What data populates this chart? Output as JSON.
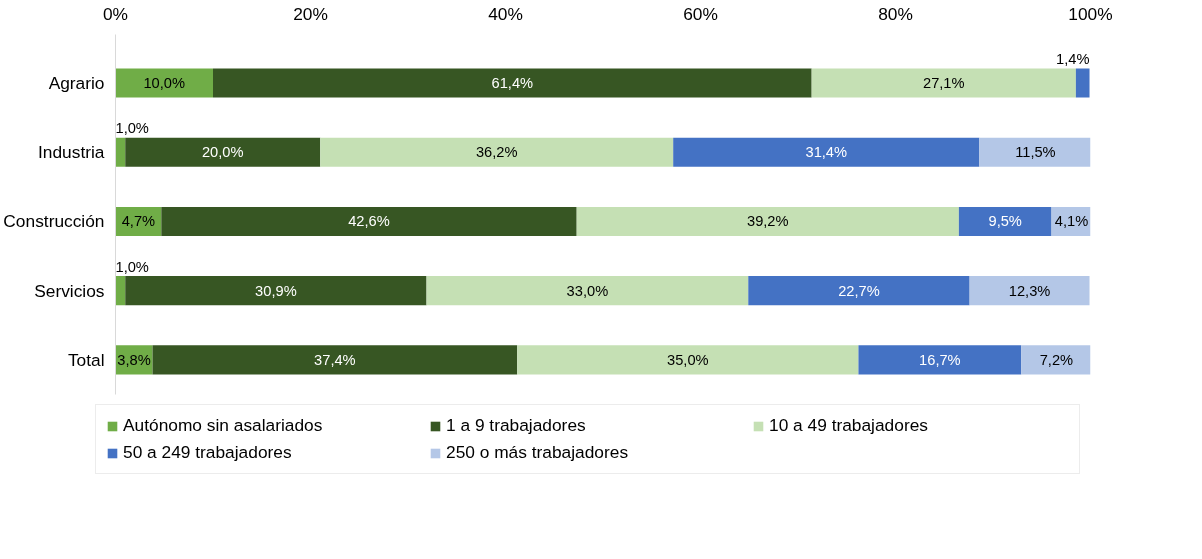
{
  "chart_data": {
    "type": "bar",
    "orientation": "horizontal",
    "stacked": true,
    "categories": [
      "Agrario",
      "Industria",
      "Construcción",
      "Servicios",
      "Total"
    ],
    "series": [
      {
        "name": "Autónomo sin asalariados",
        "color": "#70ad47",
        "values": [
          10.0,
          1.0,
          4.7,
          1.0,
          3.8
        ],
        "value_labels": [
          "10,0%",
          "1,0%",
          "4,7%",
          "1,0%",
          "3,8%"
        ]
      },
      {
        "name": "1 a 9 trabajadores",
        "color": "#375623",
        "values": [
          61.4,
          20.0,
          42.6,
          30.9,
          37.4
        ],
        "value_labels": [
          "61,4%",
          "20,0%",
          "42,6%",
          "30,9%",
          "37,4%"
        ]
      },
      {
        "name": "10 a 49 trabajadores",
        "color": "#c5e0b4",
        "values": [
          27.1,
          36.2,
          39.2,
          33.0,
          35.0
        ],
        "value_labels": [
          "27,1%",
          "36,2%",
          "39,2%",
          "33,0%",
          "35,0%"
        ]
      },
      {
        "name": "50 a 249 trabajadores",
        "color": "#4472c4",
        "values": [
          1.4,
          31.4,
          9.5,
          22.7,
          16.7
        ],
        "value_labels": [
          "1,4%",
          "31,4%",
          "9,5%",
          "22,7%",
          "16,7%"
        ]
      },
      {
        "name": "250 o más trabajadores",
        "color": "#b4c7e7",
        "values": [
          null,
          11.5,
          4.1,
          12.3,
          7.2
        ],
        "value_labels": [
          null,
          "11,5%",
          "4,1%",
          "12,3%",
          "7,2%"
        ]
      }
    ],
    "xlim": [
      0,
      100
    ],
    "xticks": [
      {
        "value": 0,
        "label": "0%"
      },
      {
        "value": 20,
        "label": "20%"
      },
      {
        "value": 40,
        "label": "40%"
      },
      {
        "value": 60,
        "label": "60%"
      },
      {
        "value": 80,
        "label": "80%"
      },
      {
        "value": 100,
        "label": "100%"
      }
    ],
    "grid": false,
    "legend": "bottom"
  }
}
